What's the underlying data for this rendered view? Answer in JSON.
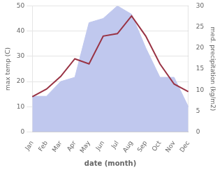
{
  "chart_data": {
    "type": "line",
    "xlabel": "date (month)",
    "ylabel": "max temp (C)",
    "y2label": "med. precipitation (kg/m2)",
    "categories": [
      "Jan",
      "Feb",
      "Mar",
      "Apr",
      "May",
      "Jun",
      "Jul",
      "Aug",
      "Sep",
      "Oct",
      "Nov",
      "Dec"
    ],
    "series": [
      {
        "type": "area",
        "axis": "y2",
        "color": "#c0c8ee",
        "values": [
          8.5,
          8.5,
          12,
          13,
          26,
          27,
          30,
          28,
          20,
          13,
          13,
          6
        ]
      },
      {
        "type": "line",
        "axis": "y",
        "color": "#993344",
        "values": [
          14,
          17,
          22,
          29,
          27,
          38,
          39,
          46,
          38,
          27,
          19,
          16
        ]
      }
    ],
    "ylim": [
      0,
      50
    ],
    "yticks": [
      0,
      10,
      20,
      30,
      40,
      50
    ],
    "y2lim": [
      0,
      30
    ],
    "y2ticks": [
      0,
      5,
      10,
      15,
      20,
      25,
      30
    ],
    "grid": true
  }
}
